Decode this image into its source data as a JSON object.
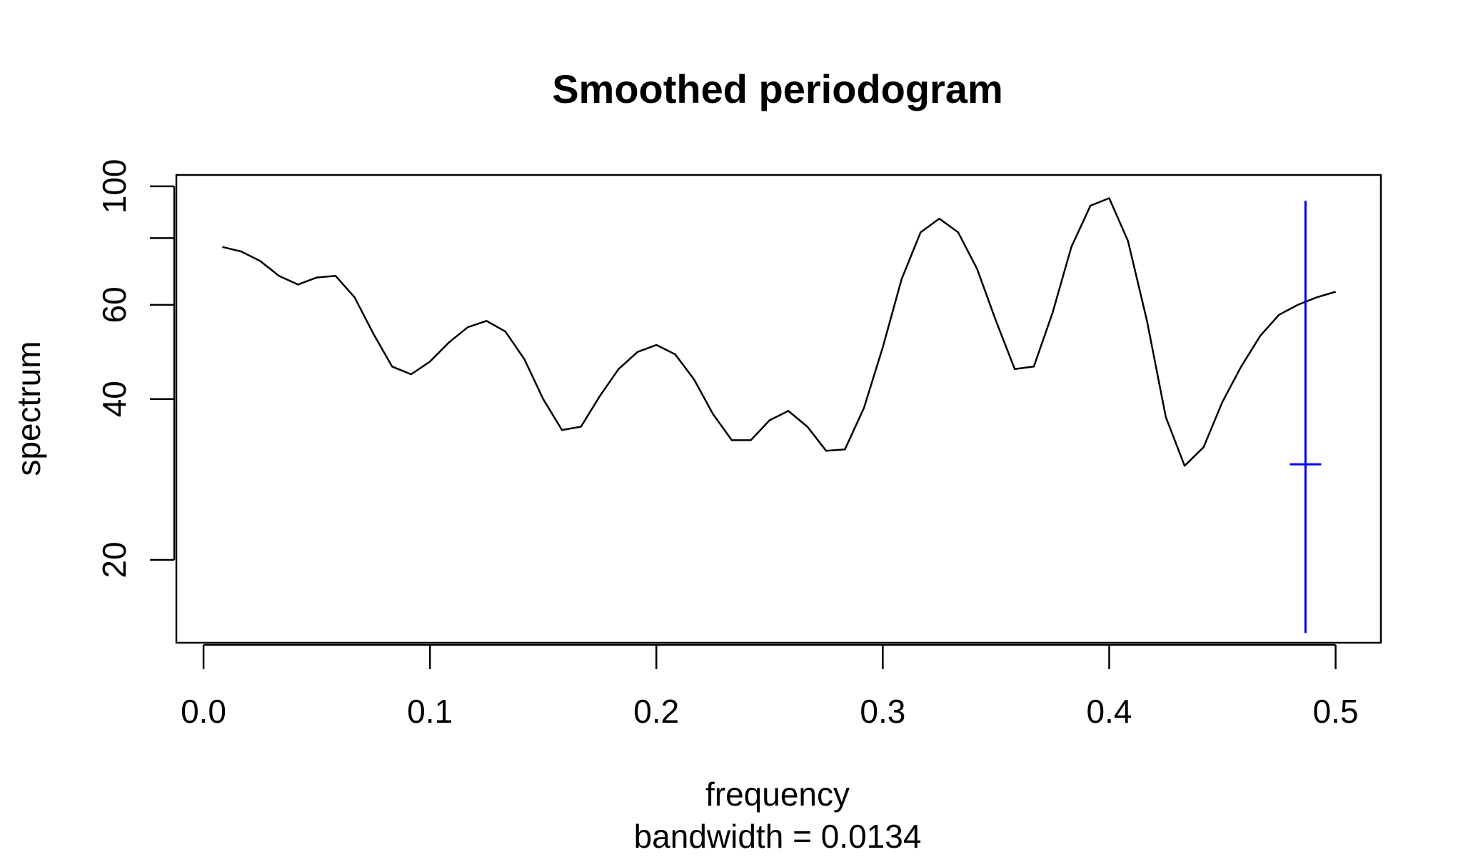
{
  "chart_data": {
    "type": "line",
    "title": "Smoothed periodogram",
    "xlabel": "frequency",
    "sub": "bandwidth = 0.0134",
    "ylabel": "spectrum",
    "ylog": true,
    "xlim": [
      -0.012,
      0.52
    ],
    "ylim": [
      14,
      105
    ],
    "xticks": [
      0.0,
      0.1,
      0.2,
      0.3,
      0.4,
      0.5
    ],
    "xtick_labels": [
      "0.0",
      "0.1",
      "0.2",
      "0.3",
      "0.4",
      "0.5"
    ],
    "yticks": [
      20,
      40,
      60,
      80,
      100
    ],
    "ytick_labels": [
      "20",
      "40",
      "60",
      "",
      "100"
    ],
    "line_color": "#000000",
    "ci_color": "#0000ff",
    "series": [
      {
        "name": "spectrum",
        "x": [
          0.0083,
          0.0167,
          0.025,
          0.0333,
          0.0417,
          0.05,
          0.0583,
          0.0667,
          0.075,
          0.0833,
          0.0917,
          0.1,
          0.1083,
          0.1167,
          0.125,
          0.1333,
          0.1417,
          0.15,
          0.1583,
          0.1667,
          0.175,
          0.1833,
          0.1917,
          0.2,
          0.2083,
          0.2167,
          0.225,
          0.2333,
          0.2417,
          0.25,
          0.2583,
          0.2667,
          0.275,
          0.2833,
          0.2917,
          0.3,
          0.3083,
          0.3167,
          0.325,
          0.3333,
          0.3417,
          0.35,
          0.3583,
          0.3667,
          0.375,
          0.3833,
          0.3917,
          0.4,
          0.4083,
          0.4167,
          0.425,
          0.4333,
          0.4417,
          0.45,
          0.4583,
          0.4667,
          0.475,
          0.4833,
          0.4917,
          0.5
        ],
        "values": [
          77,
          75.5,
          72.5,
          68,
          65.5,
          67.5,
          68,
          62,
          53,
          46,
          44.5,
          47,
          51,
          54.5,
          56,
          53.5,
          47.5,
          40,
          35,
          35.5,
          40.5,
          45.5,
          49,
          50.5,
          48.5,
          43.5,
          37.5,
          33.5,
          33.5,
          36.5,
          38,
          35.5,
          32,
          32.2,
          38.5,
          50,
          67,
          82,
          87,
          82,
          70,
          56,
          45.5,
          46,
          58,
          77,
          92,
          95,
          79,
          56,
          37,
          30,
          32.5,
          39.5,
          46,
          52.5,
          57.5,
          60,
          62,
          63.5
        ]
      }
    ],
    "ci_bar": {
      "x": 0.4867,
      "center": 30.2,
      "lower": 14.6,
      "upper": 94
    }
  }
}
